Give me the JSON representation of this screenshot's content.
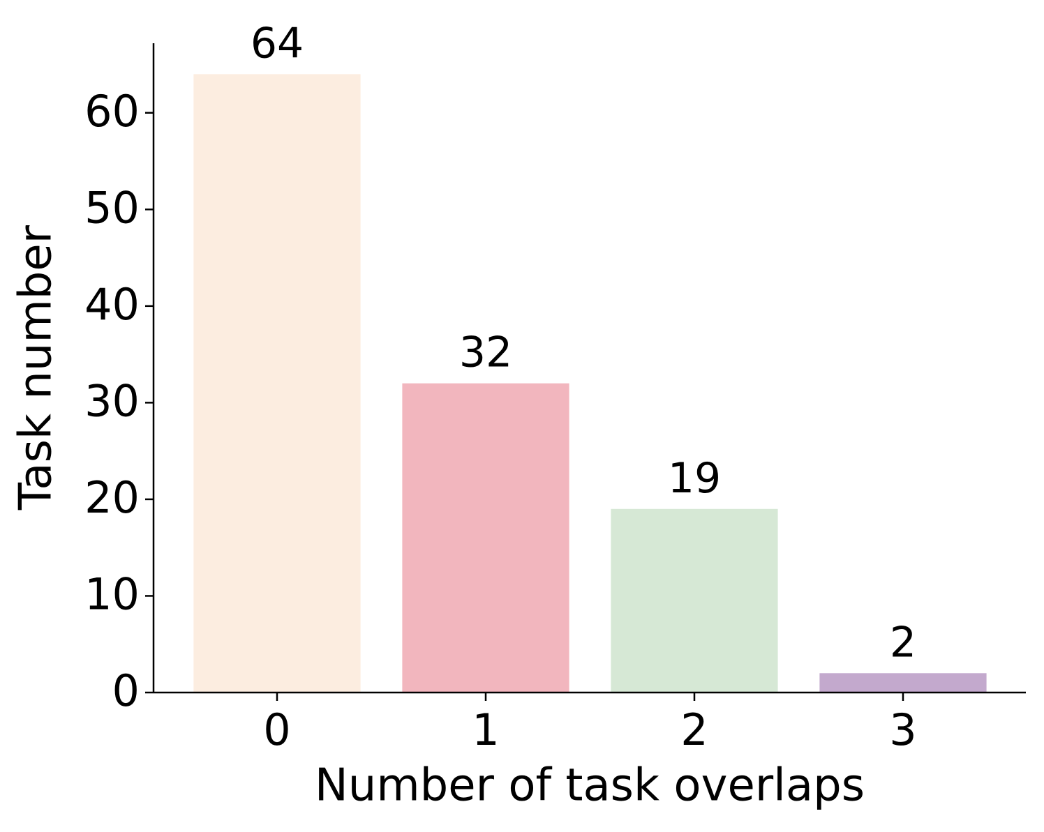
{
  "chart_data": {
    "type": "bar",
    "x_label": "Number of task overlaps",
    "y_label": "Task number",
    "categories": [
      "0",
      "1",
      "2",
      "3"
    ],
    "values": [
      64,
      32,
      19,
      2
    ],
    "colors": [
      "#fcede0",
      "#f2b6be",
      "#d6e8d5",
      "#c3a9cd"
    ],
    "ylim": [
      0,
      67.2
    ],
    "yticks": [
      0,
      10,
      20,
      30,
      40,
      50,
      60
    ],
    "grid": false,
    "data_labels": true
  }
}
